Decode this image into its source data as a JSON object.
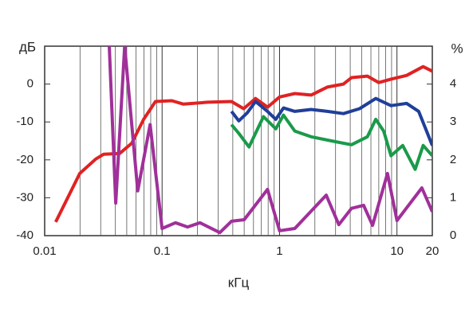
{
  "chart_data": {
    "type": "line",
    "xlabel": "кГц",
    "ylabel": "дБ",
    "y2label": "%",
    "xscale": "log",
    "xlim": [
      0.01,
      20
    ],
    "xticks": [
      0.01,
      0.1,
      1,
      10,
      20
    ],
    "ylim": [
      -40,
      10
    ],
    "yticks": [
      0,
      -10,
      -20,
      -30,
      -40
    ],
    "y2lim": [
      0,
      5
    ],
    "y2ticks": [
      0,
      1,
      2,
      3,
      4
    ],
    "grid": "x",
    "series": [
      {
        "color": "#e02222",
        "x": [
          0.0124,
          0.0199,
          0.0272,
          0.0318,
          0.0436,
          0.0552,
          0.0697,
          0.0878,
          0.121,
          0.152,
          0.244,
          0.39,
          0.495,
          0.625,
          0.791,
          1.0,
          1.35,
          1.86,
          2.55,
          3.5,
          4.1,
          5.6,
          7.0,
          8.9,
          12.1,
          16.7,
          20
        ],
        "values": [
          -36.4,
          -23.6,
          -19.8,
          -18.5,
          -18.3,
          -15.6,
          -9.3,
          -4.6,
          -4.4,
          -5.3,
          -4.8,
          -4.6,
          -6.5,
          -3.8,
          -6.1,
          -3.4,
          -2.5,
          -2.9,
          -0.8,
          0,
          1.7,
          2.1,
          0.4,
          1.3,
          2.3,
          4.6,
          3.4
        ]
      },
      {
        "color": "#1f3f99",
        "x": [
          0.39,
          0.45,
          0.53,
          0.625,
          0.79,
          0.93,
          1.08,
          1.35,
          1.86,
          2.55,
          3.5,
          4.8,
          6.6,
          8.9,
          12.1,
          15.3,
          20
        ],
        "values": [
          -7.2,
          -9.7,
          -7.6,
          -4.6,
          -7.2,
          -9.3,
          -6.3,
          -7.2,
          -6.7,
          -7.2,
          -7.8,
          -6.5,
          -3.8,
          -5.7,
          -5.1,
          -7.2,
          -16.2
        ]
      },
      {
        "color": "#1a9a4a",
        "x": [
          0.39,
          0.45,
          0.55,
          0.73,
          0.93,
          1.08,
          1.35,
          1.86,
          3.0,
          4.1,
          5.6,
          6.6,
          7.7,
          8.9,
          11.2,
          14.3,
          16.7,
          20
        ],
        "values": [
          -10.7,
          -13,
          -16.6,
          -8.6,
          -11.8,
          -8.2,
          -12.4,
          -13.9,
          -15.2,
          -16,
          -13.9,
          -9.3,
          -12.4,
          -18.9,
          -16.2,
          -22.5,
          -16.2,
          -18.9
        ]
      },
      {
        "color": "#a0309a",
        "axis": "y2",
        "x": [
          0.0355,
          0.0403,
          0.048,
          0.062,
          0.079,
          0.1,
          0.13,
          0.165,
          0.21,
          0.31,
          0.39,
          0.5,
          0.79,
          1.0,
          1.35,
          2.5,
          3.2,
          4.1,
          5.2,
          6.2,
          8.3,
          10,
          16.3,
          20
        ],
        "values": [
          5.0,
          0.86,
          5.0,
          1.18,
          2.93,
          0.19,
          0.34,
          0.23,
          0.34,
          0.08,
          0.38,
          0.42,
          1.22,
          0.13,
          0.19,
          1.07,
          0.29,
          0.72,
          0.8,
          0.27,
          1.64,
          0.4,
          1.26,
          0.63
        ]
      }
    ]
  }
}
